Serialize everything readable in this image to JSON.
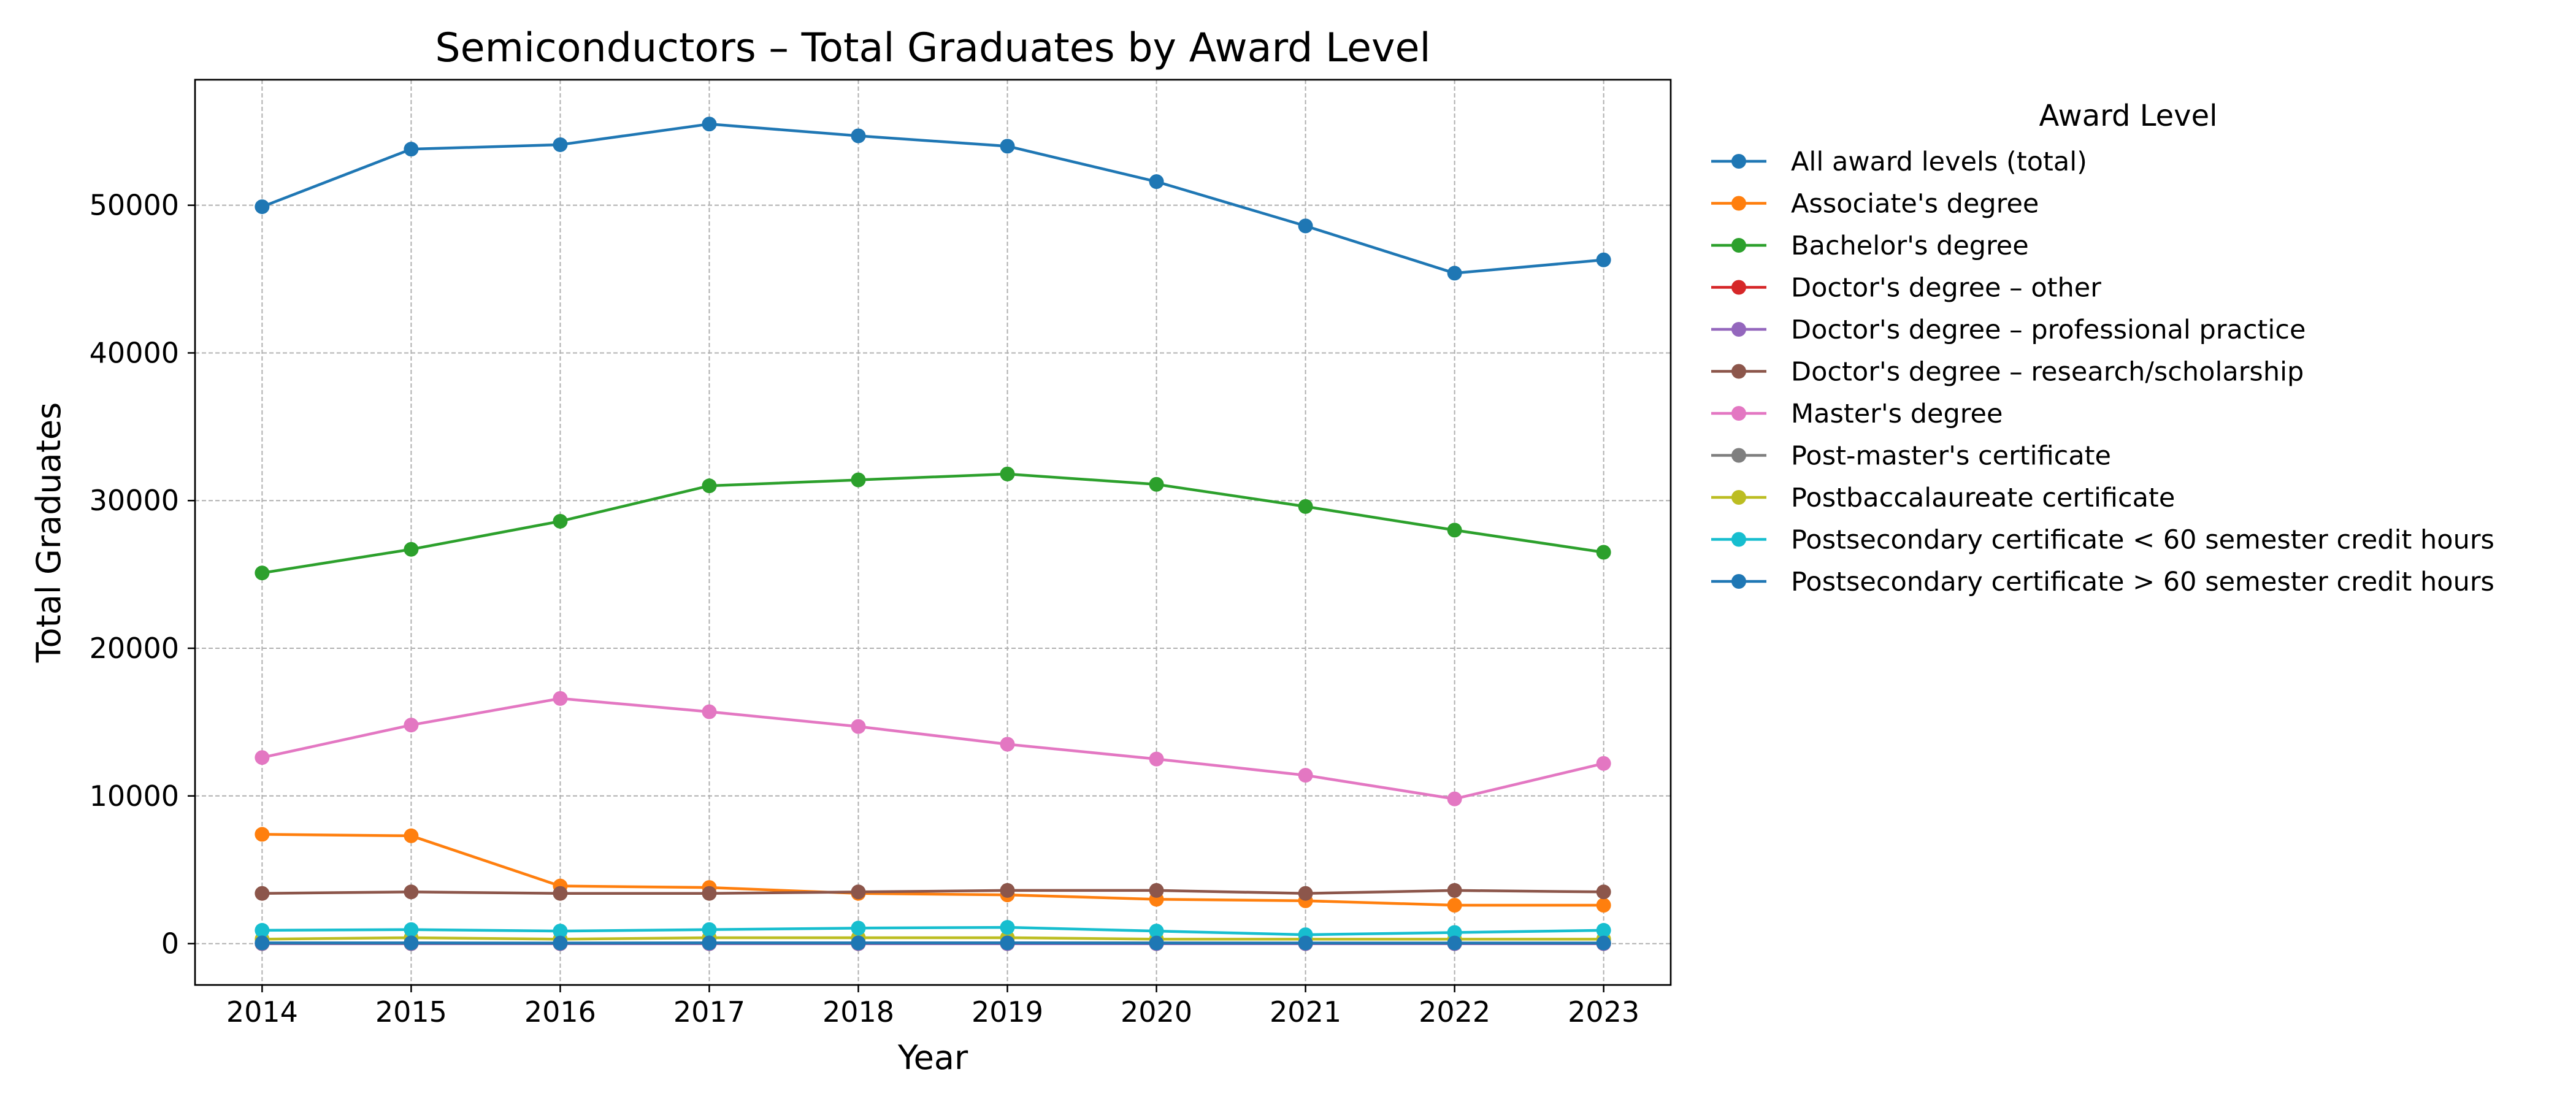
{
  "chart_data": {
    "type": "line",
    "title": "Semiconductors – Total Graduates by Award Level",
    "xlabel": "Year",
    "ylabel": "Total Graduates",
    "x": [
      2014,
      2015,
      2016,
      2017,
      2018,
      2019,
      2020,
      2021,
      2022,
      2023
    ],
    "xlim": [
      2013.55,
      2023.45
    ],
    "ylim": [
      -2800,
      58500
    ],
    "yticks": [
      0,
      10000,
      20000,
      30000,
      40000,
      50000
    ],
    "grid": true,
    "legend": {
      "title": "Award Level",
      "placement": "outside right"
    },
    "series": [
      {
        "name": "All award levels (total)",
        "color": "#1f77b4",
        "values": [
          49900,
          53800,
          54100,
          55500,
          54700,
          54000,
          51600,
          48600,
          45400,
          46300
        ]
      },
      {
        "name": "Associate's degree",
        "color": "#ff7f0e",
        "values": [
          7400,
          7300,
          3900,
          3800,
          3400,
          3300,
          3000,
          2900,
          2600,
          2600
        ]
      },
      {
        "name": "Bachelor's degree",
        "color": "#2ca02c",
        "values": [
          25100,
          26700,
          28600,
          31000,
          31400,
          31800,
          31100,
          29600,
          28000,
          26500
        ]
      },
      {
        "name": "Doctor's degree – other",
        "color": "#d62728",
        "values": [
          0,
          0,
          0,
          0,
          0,
          0,
          0,
          0,
          0,
          0
        ]
      },
      {
        "name": "Doctor's degree – professional practice",
        "color": "#9467bd",
        "values": [
          0,
          0,
          0,
          0,
          0,
          0,
          0,
          0,
          0,
          0
        ]
      },
      {
        "name": "Doctor's degree – research/scholarship",
        "color": "#8c564b",
        "values": [
          3400,
          3500,
          3400,
          3400,
          3500,
          3600,
          3600,
          3400,
          3600,
          3500
        ]
      },
      {
        "name": "Master's degree",
        "color": "#e377c2",
        "values": [
          12600,
          14800,
          16600,
          15700,
          14700,
          13500,
          12500,
          11400,
          9800,
          12200
        ]
      },
      {
        "name": "Post-master's certificate",
        "color": "#7f7f7f",
        "values": [
          30,
          30,
          30,
          40,
          40,
          50,
          50,
          40,
          40,
          40
        ]
      },
      {
        "name": "Postbaccalaureate certificate",
        "color": "#bcbd22",
        "values": [
          300,
          400,
          300,
          400,
          400,
          400,
          300,
          300,
          300,
          300
        ]
      },
      {
        "name": "Postsecondary certificate < 60 semester credit hours",
        "color": "#17becf",
        "values": [
          900,
          950,
          850,
          950,
          1050,
          1100,
          850,
          600,
          750,
          900
        ]
      },
      {
        "name": "Postsecondary certificate > 60 semester credit hours",
        "color": "#1f77b4",
        "values": [
          50,
          50,
          40,
          50,
          50,
          50,
          40,
          40,
          40,
          40
        ]
      }
    ]
  }
}
